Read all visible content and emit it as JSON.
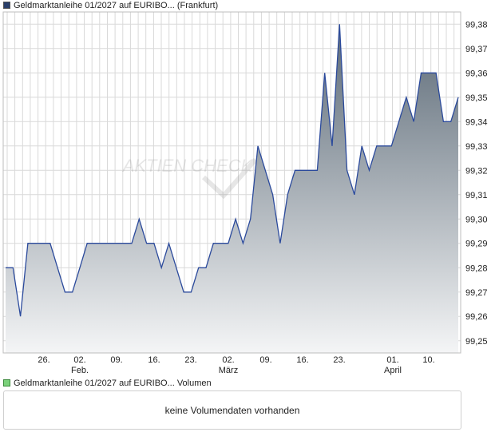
{
  "legend": {
    "price_label": "Geldmarktanleihe 01/2027 auf EURIBO... (Frankfurt)",
    "volume_label": "Geldmarktanleihe 01/2027 auf EURIBO... Volumen"
  },
  "volume_panel": {
    "message": "keine Volumendaten vorhanden"
  },
  "watermark": {
    "text": "AKTIEN CHECK"
  },
  "colors": {
    "line": "#2b4a9c",
    "fill_top": "#5c6a77",
    "fill_bottom": "#f4f5f6",
    "grid": "#d9d9d9",
    "volume_swatch": "#7bd17b"
  },
  "chart_data": {
    "type": "area",
    "title": "",
    "xlabel": "",
    "ylabel": "",
    "ylim": [
      99.245,
      99.385
    ],
    "y_ticks": [
      "99,38",
      "99,37",
      "99,36",
      "99,35",
      "99,34",
      "99,33",
      "99,32",
      "99,31",
      "99,30",
      "99,29",
      "99,28",
      "99,27",
      "99,26",
      "99,25"
    ],
    "x_ticks": [
      {
        "label": "26.",
        "sub": ""
      },
      {
        "label": "02.",
        "sub": "Feb."
      },
      {
        "label": "09.",
        "sub": ""
      },
      {
        "label": "16.",
        "sub": ""
      },
      {
        "label": "23.",
        "sub": ""
      },
      {
        "label": "02.",
        "sub": "März"
      },
      {
        "label": "09.",
        "sub": ""
      },
      {
        "label": "16.",
        "sub": ""
      },
      {
        "label": "23.",
        "sub": ""
      },
      {
        "label": "01.",
        "sub": "April"
      },
      {
        "label": "10.",
        "sub": ""
      }
    ],
    "grid": true,
    "series": [
      {
        "values": [
          99.28,
          99.28,
          99.26,
          99.29,
          99.29,
          99.29,
          99.29,
          99.28,
          99.27,
          99.27,
          99.28,
          99.29,
          99.29,
          99.29,
          99.29,
          99.29,
          99.29,
          99.29,
          99.3,
          99.29,
          99.29,
          99.28,
          99.29,
          99.28,
          99.27,
          99.27,
          99.28,
          99.28,
          99.29,
          99.29,
          99.29,
          99.3,
          99.29,
          99.3,
          99.33,
          99.32,
          99.31,
          99.29,
          99.31,
          99.32,
          99.32,
          99.32,
          99.32,
          99.36,
          99.33,
          99.38,
          99.32,
          99.31,
          99.33,
          99.32,
          99.33,
          99.33,
          99.33,
          99.34,
          99.35,
          99.34,
          99.36,
          99.36,
          99.36,
          99.34,
          99.34,
          99.35
        ]
      }
    ]
  }
}
